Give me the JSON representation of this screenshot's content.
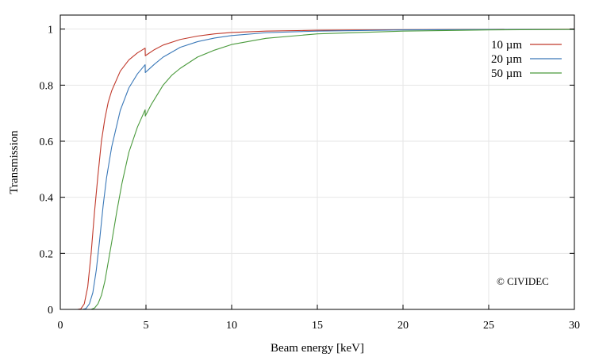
{
  "chart_data": {
    "type": "line",
    "title": "",
    "xlabel": "Beam energy [keV]",
    "ylabel": "Transmission",
    "xlim": [
      0,
      30
    ],
    "ylim": [
      0,
      1.05
    ],
    "xticks": [
      0,
      5,
      10,
      15,
      20,
      25,
      30
    ],
    "yticks": [
      0,
      0.2,
      0.4,
      0.6,
      0.8,
      1
    ],
    "xtick_labels": [
      "0",
      "5",
      "10",
      "15",
      "20",
      "25",
      "30"
    ],
    "ytick_labels": [
      "0",
      "0.2",
      "0.4",
      "0.6",
      "0.8",
      "1"
    ],
    "grid": true,
    "legend_position": "top-right",
    "annotation": "© CIVIDEC",
    "series": [
      {
        "name": "10 µm",
        "color": "#c0392b",
        "points": [
          [
            1.0,
            0.0
          ],
          [
            1.2,
            0.002
          ],
          [
            1.4,
            0.02
          ],
          [
            1.6,
            0.08
          ],
          [
            1.8,
            0.2
          ],
          [
            2.0,
            0.35
          ],
          [
            2.2,
            0.48
          ],
          [
            2.4,
            0.6
          ],
          [
            2.6,
            0.68
          ],
          [
            2.8,
            0.74
          ],
          [
            3.0,
            0.78
          ],
          [
            3.5,
            0.85
          ],
          [
            4.0,
            0.89
          ],
          [
            4.5,
            0.915
          ],
          [
            4.95,
            0.932
          ],
          [
            4.96,
            0.905
          ],
          [
            5.5,
            0.927
          ],
          [
            6,
            0.943
          ],
          [
            7,
            0.963
          ],
          [
            8,
            0.975
          ],
          [
            9,
            0.983
          ],
          [
            10,
            0.988
          ],
          [
            12,
            0.993
          ],
          [
            15,
            0.996
          ],
          [
            20,
            0.998
          ],
          [
            25,
            0.999
          ],
          [
            30,
            0.9995
          ]
        ]
      },
      {
        "name": "20 µm",
        "color": "#3a78b8",
        "points": [
          [
            1.3,
            0.0
          ],
          [
            1.5,
            0.003
          ],
          [
            1.7,
            0.02
          ],
          [
            1.9,
            0.06
          ],
          [
            2.1,
            0.14
          ],
          [
            2.3,
            0.25
          ],
          [
            2.5,
            0.37
          ],
          [
            2.7,
            0.47
          ],
          [
            3.0,
            0.58
          ],
          [
            3.5,
            0.71
          ],
          [
            4.0,
            0.79
          ],
          [
            4.5,
            0.84
          ],
          [
            4.95,
            0.873
          ],
          [
            4.96,
            0.845
          ],
          [
            5.5,
            0.875
          ],
          [
            6,
            0.9
          ],
          [
            7,
            0.935
          ],
          [
            8,
            0.955
          ],
          [
            9,
            0.968
          ],
          [
            10,
            0.977
          ],
          [
            12,
            0.987
          ],
          [
            15,
            0.993
          ],
          [
            20,
            0.997
          ],
          [
            25,
            0.9985
          ],
          [
            30,
            0.999
          ]
        ]
      },
      {
        "name": "50 µm",
        "color": "#4a9a3c",
        "points": [
          [
            1.8,
            0.0
          ],
          [
            2.0,
            0.005
          ],
          [
            2.2,
            0.02
          ],
          [
            2.4,
            0.05
          ],
          [
            2.6,
            0.1
          ],
          [
            2.8,
            0.17
          ],
          [
            3.0,
            0.24
          ],
          [
            3.3,
            0.35
          ],
          [
            3.6,
            0.45
          ],
          [
            4.0,
            0.56
          ],
          [
            4.5,
            0.65
          ],
          [
            4.95,
            0.712
          ],
          [
            4.96,
            0.69
          ],
          [
            5.3,
            0.73
          ],
          [
            5.7,
            0.77
          ],
          [
            6,
            0.8
          ],
          [
            6.5,
            0.835
          ],
          [
            7,
            0.86
          ],
          [
            8,
            0.9
          ],
          [
            9,
            0.925
          ],
          [
            10,
            0.945
          ],
          [
            12,
            0.967
          ],
          [
            15,
            0.983
          ],
          [
            20,
            0.993
          ],
          [
            25,
            0.997
          ],
          [
            30,
            0.999
          ]
        ]
      }
    ]
  }
}
